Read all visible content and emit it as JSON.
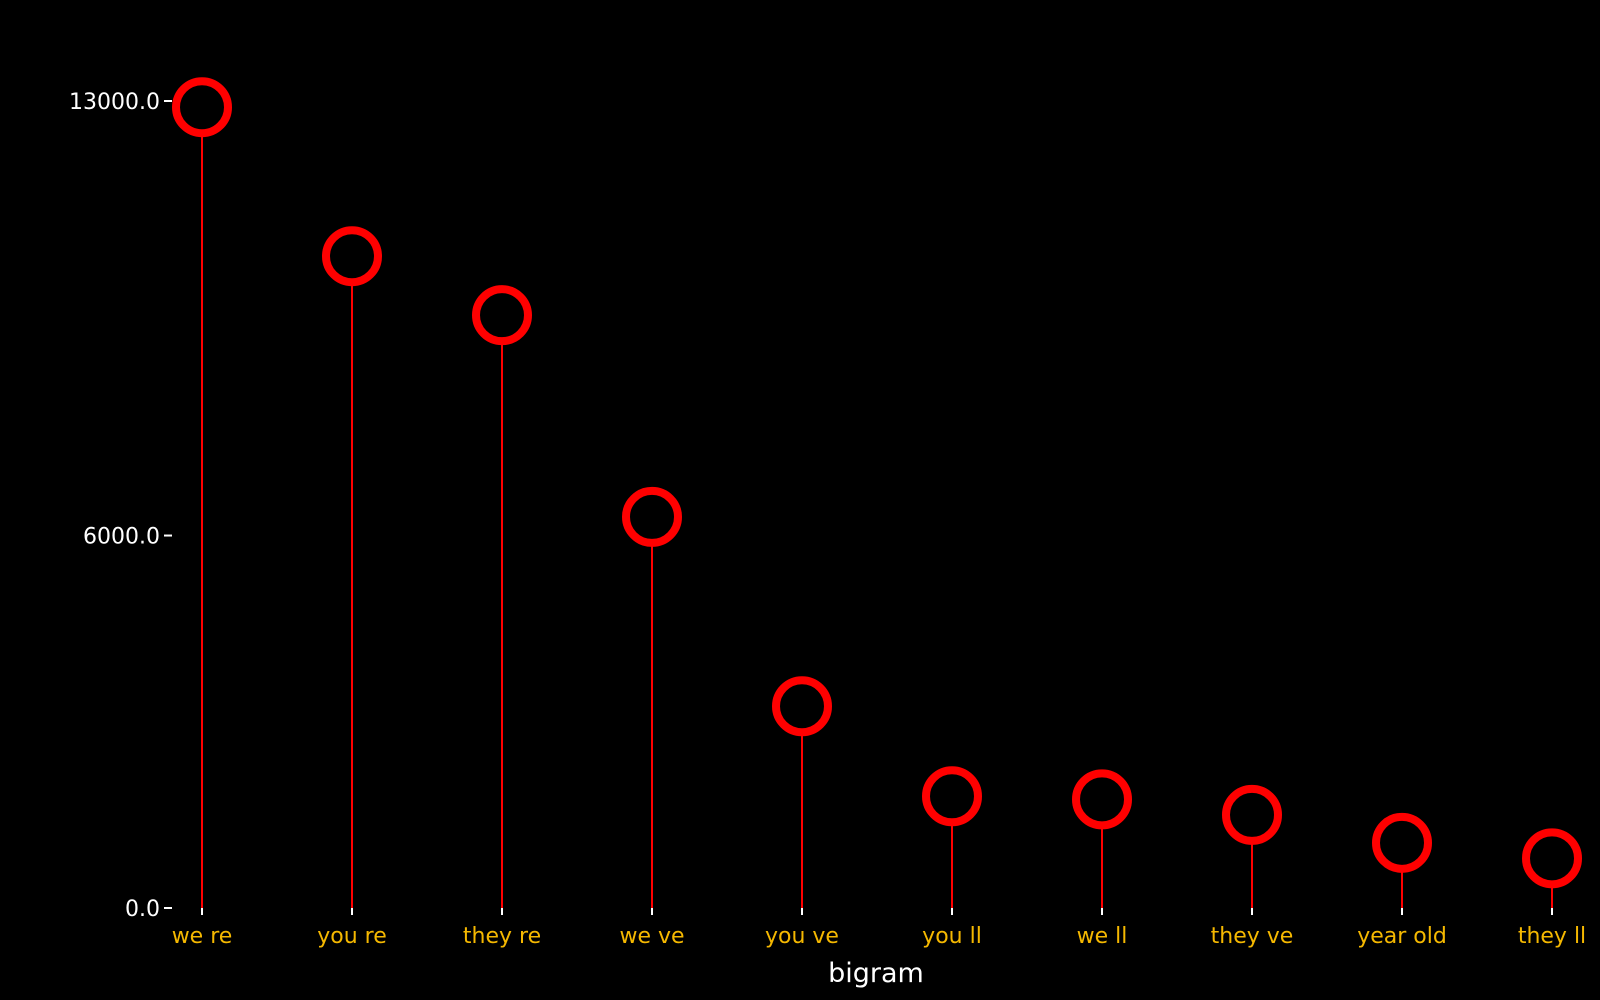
{
  "chart_data": {
    "type": "lollipop",
    "categories": [
      "we re",
      "you re",
      "they re",
      "we ve",
      "you ve",
      "you ll",
      "we ll",
      "they ve",
      "year old",
      "they ll"
    ],
    "values": [
      12900,
      10500,
      9550,
      6300,
      3250,
      1800,
      1750,
      1500,
      1050,
      800
    ],
    "xlabel": "bigram",
    "ylabel": "",
    "yticks": [
      0,
      6000,
      13000
    ],
    "ytick_labels": [
      "0.0",
      "6000.0",
      "13000.0"
    ],
    "ylim": [
      0,
      13000
    ],
    "grid": false,
    "colors": {
      "background": "#000000",
      "marker": "#ff0000",
      "stem": "#ff0000",
      "xtick_text": "#f5b800",
      "ytick_text": "#ffffff",
      "axis_title": "#ffffff"
    }
  }
}
